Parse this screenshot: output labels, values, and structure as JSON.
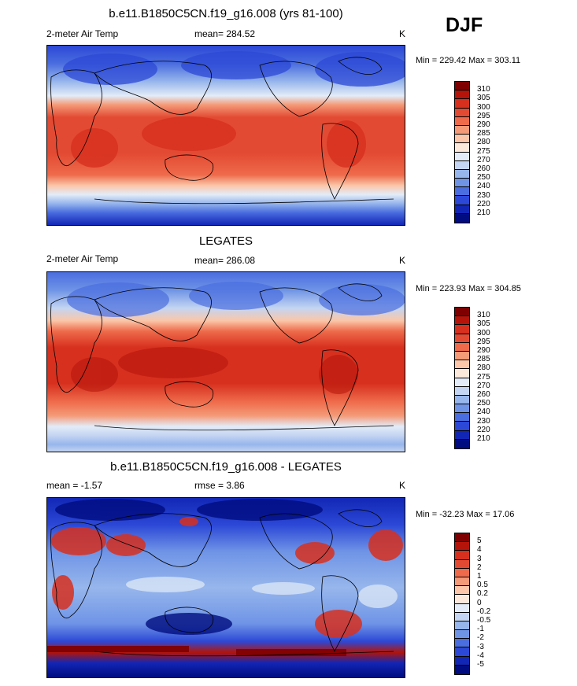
{
  "season": "DJF",
  "units": "K",
  "panels": [
    {
      "title": "b.e11.B1850C5CN.f19_g16.008 (yrs 81-100)",
      "variable": "2-meter Air Temp",
      "stat": "mean= 284.52",
      "units": "K",
      "minmax": "Min = 229.42 Max = 303.11",
      "colorbar": {
        "labels": [
          "310",
          "305",
          "300",
          "295",
          "290",
          "285",
          "280",
          "275",
          "270",
          "260",
          "250",
          "240",
          "230",
          "220",
          "210"
        ],
        "colors": [
          "#7f0000",
          "#b4140a",
          "#d7301f",
          "#e34a33",
          "#ee6a4a",
          "#f49a78",
          "#fbc6a9",
          "#fde8dc",
          "#e3ecf8",
          "#c3d5f2",
          "#97b6ec",
          "#6f94e6",
          "#4a6ddf",
          "#2c48d6",
          "#1226b5",
          "#000c7f"
        ]
      }
    },
    {
      "title": "LEGATES",
      "variable": "2-meter Air Temp",
      "stat": "mean= 286.08",
      "units": "K",
      "minmax": "Min = 223.93 Max = 304.85",
      "colorbar": {
        "labels": [
          "310",
          "305",
          "300",
          "295",
          "290",
          "285",
          "280",
          "275",
          "270",
          "260",
          "250",
          "240",
          "230",
          "220",
          "210"
        ],
        "colors": [
          "#7f0000",
          "#b4140a",
          "#d7301f",
          "#e34a33",
          "#ee6a4a",
          "#f49a78",
          "#fbc6a9",
          "#fde8dc",
          "#e3ecf8",
          "#c3d5f2",
          "#97b6ec",
          "#6f94e6",
          "#4a6ddf",
          "#2c48d6",
          "#1226b5",
          "#000c7f"
        ]
      }
    },
    {
      "title": "b.e11.B1850C5CN.f19_g16.008 - LEGATES",
      "variable": "mean =  -1.57",
      "stat": "rmse =   3.86",
      "units": "K",
      "minmax": "Min = -32.23 Max =  17.06",
      "colorbar": {
        "labels": [
          "5",
          "4",
          "3",
          "2",
          "1",
          "0.5",
          "0.2",
          "0",
          "-0.2",
          "-0.5",
          "-1",
          "-2",
          "-3",
          "-4",
          "-5"
        ],
        "colors": [
          "#7f0000",
          "#b4140a",
          "#d7301f",
          "#e34a33",
          "#ee6a4a",
          "#f49a78",
          "#fbc6a9",
          "#fde8dc",
          "#e3ecf8",
          "#c3d5f2",
          "#97b6ec",
          "#6f94e6",
          "#4a6ddf",
          "#2c48d6",
          "#1226b5",
          "#000c7f"
        ]
      }
    }
  ]
}
